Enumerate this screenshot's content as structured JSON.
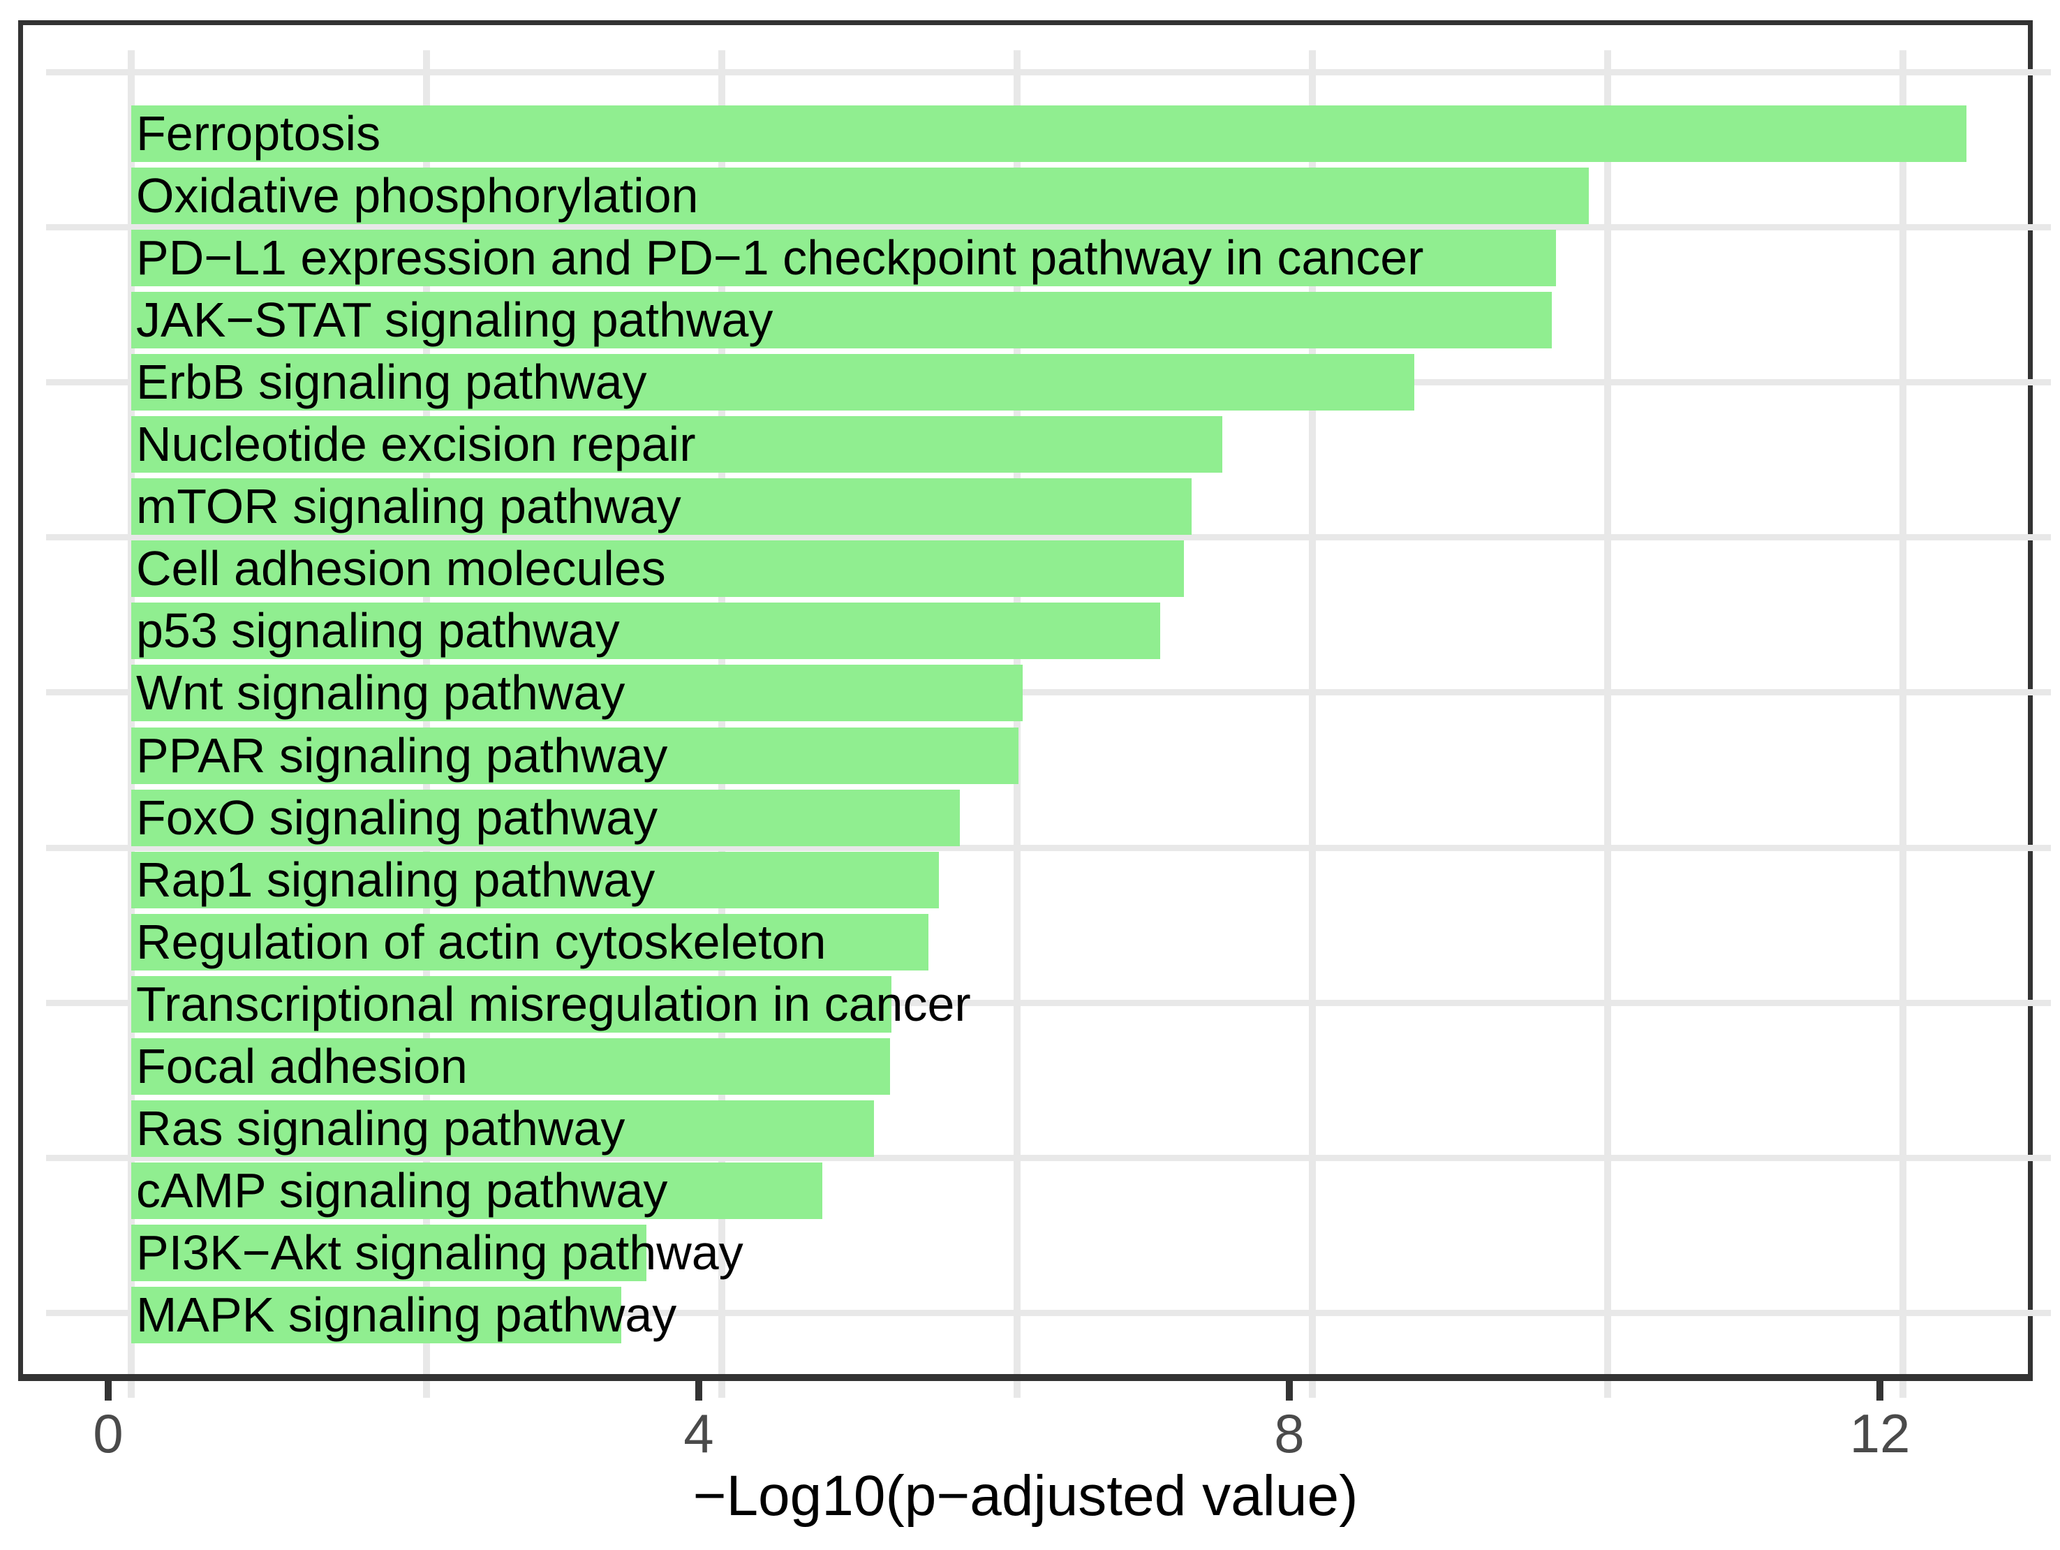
{
  "chart_data": {
    "type": "bar",
    "orientation": "horizontal",
    "title": "",
    "xlabel": "−Log10(p−adjusted value)",
    "ylabel": "",
    "xlim": [
      -0.6,
      13.0
    ],
    "x_major_ticks": [
      0,
      4,
      8,
      12
    ],
    "x_minor_gridlines": [
      2,
      6,
      10
    ],
    "grid": "on",
    "legend": "none",
    "bar_color": "#90EE90",
    "bar_label_color": "#000000",
    "grid_color": "#E8E8E8",
    "panel_border_color": "#333333",
    "tick_label_color": "#4A4A4A",
    "categories": [
      "Ferroptosis",
      "Oxidative phosphorylation",
      "PD−L1 expression and PD−1 checkpoint pathway in cancer",
      "JAK−STAT signaling pathway",
      "ErbB signaling pathway",
      "Nucleotide excision repair",
      "mTOR signaling pathway",
      "Cell adhesion molecules",
      "p53 signaling pathway",
      "Wnt signaling pathway",
      "PPAR signaling pathway",
      "FoxO signaling pathway",
      "Rap1 signaling pathway",
      "Regulation of actin cytoskeleton",
      "Transcriptional misregulation in cancer",
      "Focal adhesion",
      "Ras signaling pathway",
      "cAMP signaling pathway",
      "PI3K−Akt signaling pathway",
      "MAPK signaling pathway"
    ],
    "values": [
      12.43,
      9.87,
      9.65,
      9.62,
      8.69,
      7.39,
      7.18,
      7.13,
      6.97,
      6.04,
      6.01,
      5.61,
      5.47,
      5.4,
      5.15,
      5.14,
      5.03,
      4.68,
      3.49,
      3.32
    ]
  }
}
